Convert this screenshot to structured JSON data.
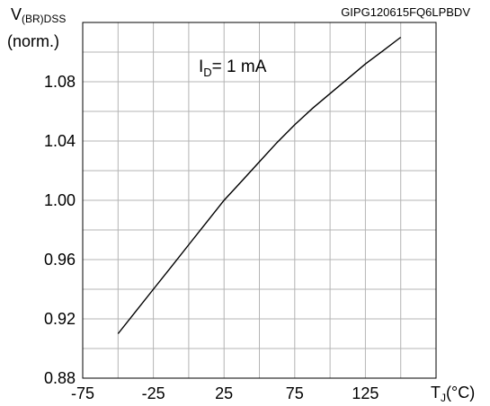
{
  "chart_data": {
    "type": "line",
    "figure_code": "GIPG120615FQ6LPBDV",
    "ylabel": {
      "main": "V",
      "sub": "(BR)DSS",
      "unit": "(norm.)"
    },
    "xlabel": {
      "main": "T",
      "sub": "J",
      "unit": "(°C)"
    },
    "annotation": {
      "main": "I",
      "sub": "D",
      "text": "= 1 mA"
    },
    "xlim": [
      -75,
      175
    ],
    "ylim": [
      0.88,
      1.12
    ],
    "x_ticks": [
      -75,
      -25,
      25,
      75,
      125
    ],
    "x_tick_labels": [
      "-75",
      "-25",
      "25",
      "75",
      "125"
    ],
    "y_ticks": [
      0.88,
      0.92,
      0.96,
      1.0,
      1.04,
      1.08
    ],
    "y_tick_labels": [
      "0.88",
      "0.92",
      "0.96",
      "1.00",
      "1.04",
      "1.08"
    ],
    "x_minor_step": 25,
    "y_minor_step": 0.02,
    "grid": true,
    "series": [
      {
        "x": [
          -50,
          -37.5,
          -25,
          -12.5,
          0,
          12.5,
          25,
          37.5,
          50,
          62.5,
          75,
          87.5,
          100,
          112.5,
          125,
          137.5,
          150
        ],
        "y": [
          0.91,
          0.925,
          0.94,
          0.955,
          0.97,
          0.985,
          1.0,
          1.013,
          1.026,
          1.039,
          1.051,
          1.062,
          1.072,
          1.082,
          1.092,
          1.101,
          1.11
        ]
      }
    ],
    "colors": {
      "line": "#000000",
      "grid": "#b4b4b4",
      "frame": "#000000"
    }
  }
}
